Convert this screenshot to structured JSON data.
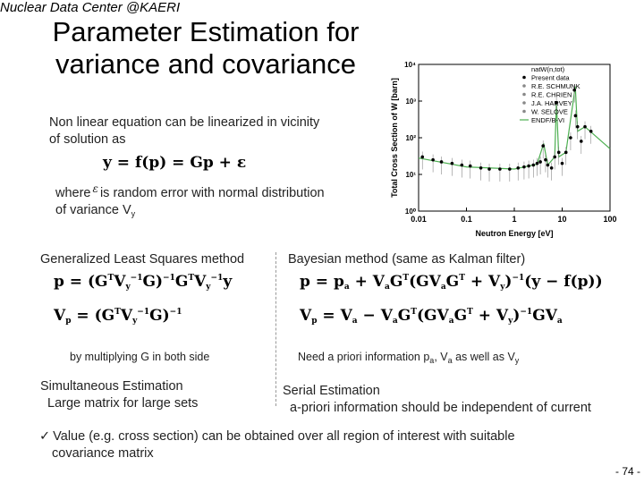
{
  "header": {
    "tag": "Nuclear Data Center @KAERI"
  },
  "title": "Parameter Estimation for variance and covariance",
  "intro": {
    "text_line1": "Non linear equation can be linearized in vicinity",
    "text_line2": "of solution as",
    "equation": "y = f(p) = Gp + ε",
    "where_prefix": "where",
    "epsilon": "ε",
    "where_suffix": "is random error with normal distribution",
    "variance_text": "of variance V",
    "variance_sub": "y"
  },
  "left_column": {
    "label": "Generalized Least Squares method",
    "note": "by multiplying G in both side",
    "simultaneous_line1": "Simultaneous Estimation",
    "simultaneous_line2": "Large matrix for large sets"
  },
  "right_column": {
    "label": "Bayesian method (same as Kalman filter)",
    "note_prefix": "Need a priori information p",
    "note_sub_a": "a",
    "note_mid": ", V",
    "note_sub_a2": "a",
    "note_suffix": " as well as V",
    "note_sub_y": "y",
    "serial_line1": "Serial Estimation",
    "serial_line2": "a-priori information should be independent of current"
  },
  "bullet": {
    "line1": "Value (e.g. cross section) can be obtained over all region of interest with suitable",
    "line2": "covariance matrix"
  },
  "page_number": "- 74 -",
  "chart_data": {
    "type": "scatter",
    "title": "",
    "xlabel": "Neutron Energy [eV]",
    "ylabel": "Total Cross Section of W [barn]",
    "x_scale": "log",
    "y_scale": "log",
    "xlim": [
      0.01,
      100
    ],
    "ylim": [
      1,
      10000
    ],
    "x_ticks": [
      "0.01",
      "0.1",
      "1",
      "10",
      "100"
    ],
    "y_ticks": [
      "10⁰",
      "10¹",
      "10²",
      "10³",
      "10⁴"
    ],
    "legend": {
      "placement": "top-right",
      "entries": [
        "natW(n,tot)",
        "Present data",
        "R.E. SCHMUNK",
        "R.E. CHRIEN",
        "J.A. HARVEY",
        "W. SELOVE",
        "ENDF/B-VI"
      ]
    },
    "series": [
      {
        "name": "Present data",
        "x": [
          0.012,
          0.02,
          0.03,
          0.05,
          0.08,
          0.12,
          0.2,
          0.3,
          0.5,
          0.8,
          1.2,
          1.6,
          2.0,
          2.5,
          3.0,
          3.5,
          4.0,
          4.5,
          5.0,
          6.0,
          7.0,
          7.6,
          8.5,
          10,
          12,
          15,
          18,
          19,
          21,
          25,
          30,
          40
        ],
        "y": [
          30,
          25,
          22,
          20,
          18,
          17,
          15,
          14,
          14,
          14,
          15,
          16,
          17,
          18,
          20,
          22,
          60,
          25,
          18,
          15,
          30,
          900,
          40,
          20,
          40,
          100,
          2000,
          400,
          200,
          80,
          200,
          150
        ]
      },
      {
        "name": "ENDF/B-VI",
        "x": [
          0.01,
          0.1,
          1,
          3,
          4.1,
          5,
          7,
          7.6,
          8.5,
          12,
          18.8,
          21,
          30,
          100
        ],
        "y": [
          28,
          16,
          14,
          19,
          70,
          18,
          30,
          1000,
          30,
          40,
          2500,
          150,
          200,
          50
        ]
      }
    ]
  }
}
